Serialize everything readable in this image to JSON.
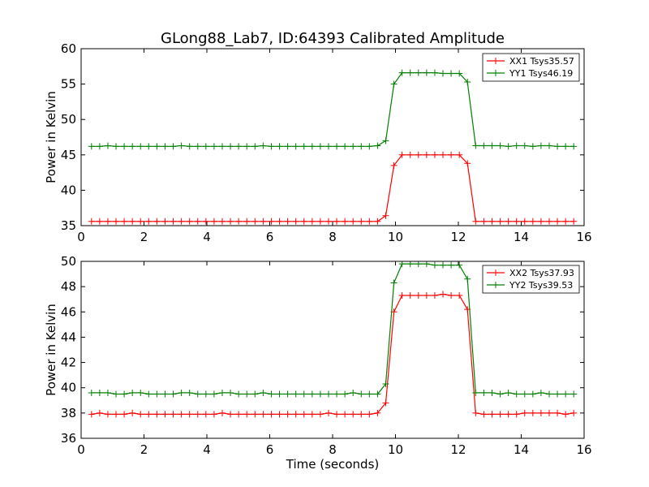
{
  "figure": {
    "title": "GLong88_Lab7, ID:64393 Calibrated Amplitude",
    "xlabel": "Time (seconds)"
  },
  "chart_data": [
    {
      "type": "line",
      "ylabel": "Power in Kelvin",
      "xlim": [
        0,
        16
      ],
      "ylim": [
        35,
        60
      ],
      "xticks": [
        0,
        2,
        4,
        6,
        8,
        10,
        12,
        14,
        16
      ],
      "yticks": [
        35,
        40,
        45,
        50,
        55,
        60
      ],
      "legend_position": "top-right",
      "x": [
        0.33,
        0.59,
        0.85,
        1.11,
        1.37,
        1.63,
        1.89,
        2.15,
        2.41,
        2.67,
        2.93,
        3.19,
        3.45,
        3.71,
        3.97,
        4.23,
        4.49,
        4.75,
        5.01,
        5.27,
        5.53,
        5.79,
        6.05,
        6.31,
        6.57,
        6.83,
        7.09,
        7.35,
        7.61,
        7.87,
        8.13,
        8.39,
        8.65,
        8.91,
        9.17,
        9.43,
        9.69,
        9.95,
        10.21,
        10.47,
        10.73,
        10.99,
        11.25,
        11.51,
        11.77,
        12.03,
        12.29,
        12.55,
        12.81,
        13.07,
        13.33,
        13.59,
        13.85,
        14.11,
        14.37,
        14.63,
        14.89,
        15.15,
        15.41,
        15.67
      ],
      "series": [
        {
          "name": "XX1 Tsys35.57",
          "color": "#ff0000",
          "values": [
            35.6,
            35.6,
            35.6,
            35.6,
            35.6,
            35.6,
            35.6,
            35.6,
            35.6,
            35.6,
            35.6,
            35.6,
            35.6,
            35.6,
            35.6,
            35.6,
            35.6,
            35.6,
            35.6,
            35.6,
            35.6,
            35.6,
            35.6,
            35.6,
            35.6,
            35.6,
            35.6,
            35.6,
            35.6,
            35.6,
            35.6,
            35.6,
            35.6,
            35.6,
            35.6,
            35.6,
            36.4,
            43.5,
            45.0,
            45.0,
            45.0,
            45.0,
            45.0,
            45.0,
            45.0,
            45.0,
            43.8,
            35.6,
            35.6,
            35.6,
            35.6,
            35.6,
            35.6,
            35.6,
            35.6,
            35.6,
            35.6,
            35.6,
            35.6,
            35.6
          ]
        },
        {
          "name": "YY1 Tsys46.19",
          "color": "#008000",
          "values": [
            46.2,
            46.2,
            46.3,
            46.2,
            46.2,
            46.2,
            46.2,
            46.2,
            46.2,
            46.2,
            46.2,
            46.3,
            46.2,
            46.2,
            46.2,
            46.2,
            46.2,
            46.2,
            46.2,
            46.2,
            46.2,
            46.3,
            46.2,
            46.2,
            46.2,
            46.2,
            46.2,
            46.2,
            46.2,
            46.2,
            46.2,
            46.2,
            46.2,
            46.2,
            46.2,
            46.3,
            47.0,
            55.0,
            56.6,
            56.6,
            56.6,
            56.6,
            56.6,
            56.5,
            56.5,
            56.5,
            55.3,
            46.3,
            46.3,
            46.3,
            46.3,
            46.2,
            46.3,
            46.3,
            46.2,
            46.3,
            46.3,
            46.2,
            46.2,
            46.2
          ]
        }
      ]
    },
    {
      "type": "line",
      "ylabel": "Power in Kelvin",
      "xlabel": "Time (seconds)",
      "xlim": [
        0,
        16
      ],
      "ylim": [
        36,
        50
      ],
      "xticks": [
        0,
        2,
        4,
        6,
        8,
        10,
        12,
        14,
        16
      ],
      "yticks": [
        36,
        38,
        40,
        42,
        44,
        46,
        48,
        50
      ],
      "legend_position": "top-right",
      "x": [
        0.33,
        0.59,
        0.85,
        1.11,
        1.37,
        1.63,
        1.89,
        2.15,
        2.41,
        2.67,
        2.93,
        3.19,
        3.45,
        3.71,
        3.97,
        4.23,
        4.49,
        4.75,
        5.01,
        5.27,
        5.53,
        5.79,
        6.05,
        6.31,
        6.57,
        6.83,
        7.09,
        7.35,
        7.61,
        7.87,
        8.13,
        8.39,
        8.65,
        8.91,
        9.17,
        9.43,
        9.69,
        9.95,
        10.21,
        10.47,
        10.73,
        10.99,
        11.25,
        11.51,
        11.77,
        12.03,
        12.29,
        12.55,
        12.81,
        13.07,
        13.33,
        13.59,
        13.85,
        14.11,
        14.37,
        14.63,
        14.89,
        15.15,
        15.41,
        15.67
      ],
      "series": [
        {
          "name": "XX2 Tsys37.93",
          "color": "#ff0000",
          "values": [
            37.9,
            38.0,
            37.9,
            37.9,
            37.9,
            38.0,
            37.9,
            37.9,
            37.9,
            37.9,
            37.9,
            37.9,
            37.9,
            37.9,
            37.9,
            37.9,
            38.0,
            37.9,
            37.9,
            37.9,
            37.9,
            37.9,
            37.9,
            37.9,
            37.9,
            37.9,
            37.9,
            37.9,
            37.9,
            38.0,
            37.9,
            37.9,
            37.9,
            37.9,
            37.9,
            38.0,
            38.8,
            46.0,
            47.3,
            47.3,
            47.3,
            47.3,
            47.3,
            47.4,
            47.3,
            47.3,
            46.2,
            38.0,
            37.9,
            37.9,
            37.9,
            37.9,
            37.9,
            38.0,
            38.0,
            38.0,
            38.0,
            38.0,
            37.9,
            38.0
          ]
        },
        {
          "name": "YY2 Tsys39.53",
          "color": "#008000",
          "values": [
            39.6,
            39.6,
            39.6,
            39.5,
            39.5,
            39.6,
            39.6,
            39.5,
            39.5,
            39.5,
            39.5,
            39.6,
            39.6,
            39.5,
            39.5,
            39.5,
            39.6,
            39.6,
            39.5,
            39.5,
            39.5,
            39.6,
            39.5,
            39.5,
            39.5,
            39.5,
            39.5,
            39.5,
            39.5,
            39.5,
            39.5,
            39.5,
            39.6,
            39.5,
            39.5,
            39.5,
            40.3,
            48.3,
            49.8,
            49.8,
            49.8,
            49.8,
            49.7,
            49.7,
            49.7,
            49.7,
            48.6,
            39.6,
            39.6,
            39.6,
            39.5,
            39.6,
            39.5,
            39.5,
            39.5,
            39.6,
            39.5,
            39.5,
            39.5,
            39.5
          ]
        }
      ]
    }
  ]
}
